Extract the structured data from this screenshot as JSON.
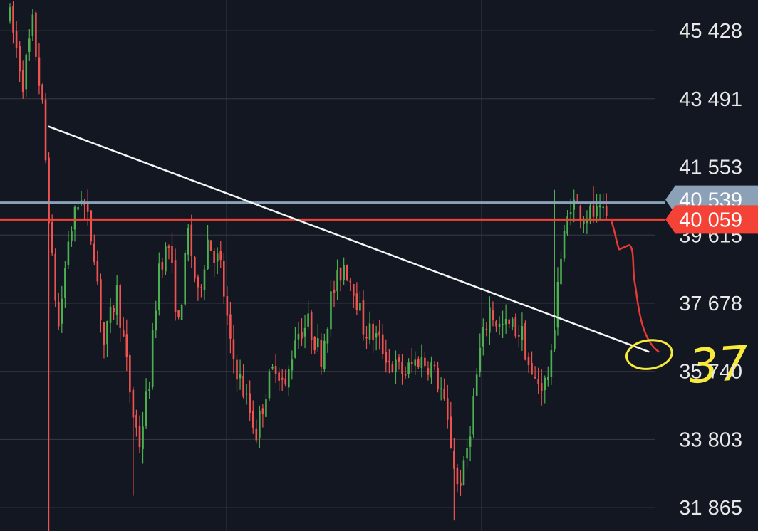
{
  "chart_data": {
    "type": "candlestick",
    "title": "",
    "xlabel": "",
    "ylabel": "",
    "y_axis_side": "right",
    "ylim": [
      31200,
      46300
    ],
    "y_ticks": [
      "45 428",
      "43 491",
      "41 553",
      "39 615",
      "37 678",
      "35 740",
      "33 803",
      "31 865"
    ],
    "y_tick_values": [
      45428,
      43491,
      41553,
      39615,
      37678,
      35740,
      33803,
      31865
    ],
    "grid": true,
    "colors": {
      "background": "#131722",
      "grid": "#363a45",
      "up": "#4caf50",
      "down": "#ef5350",
      "price_line": "#f44336",
      "level_line": "#8aa1b8",
      "trendline": "#f5f5f5",
      "annotation_red": "#e53935",
      "annotation_yellow": "#f7ea3a"
    },
    "current_price": {
      "label": "40 059",
      "value": 40059
    },
    "level_line": {
      "label": "40 539",
      "value": 40539
    },
    "trendline": {
      "from": {
        "bar": 12,
        "price": 42700
      },
      "to": {
        "bar": 197,
        "price": 36300
      }
    },
    "annotations": [
      {
        "type": "freehand-path",
        "color": "red",
        "from_price": 40059,
        "to_price": 36300
      },
      {
        "type": "circle",
        "color": "yellow",
        "price": 36300
      },
      {
        "type": "handwritten-text",
        "text": "37",
        "color": "yellow"
      }
    ],
    "ohlc_shape": {
      "bars": 185,
      "waypoints": [
        [
          0,
          45800
        ],
        [
          4,
          44000
        ],
        [
          7,
          45600
        ],
        [
          10,
          43200
        ],
        [
          13,
          38800
        ],
        [
          15,
          37000
        ],
        [
          18,
          39500
        ],
        [
          22,
          40800
        ],
        [
          26,
          39200
        ],
        [
          29,
          36500
        ],
        [
          33,
          38000
        ],
        [
          38,
          34500
        ],
        [
          40,
          33700
        ],
        [
          43,
          35500
        ],
        [
          46,
          38800
        ],
        [
          49,
          39300
        ],
        [
          52,
          37000
        ],
        [
          55,
          39700
        ],
        [
          58,
          37800
        ],
        [
          61,
          39500
        ],
        [
          65,
          38700
        ],
        [
          68,
          36400
        ],
        [
          73,
          34900
        ],
        [
          76,
          34000
        ],
        [
          79,
          35200
        ],
        [
          82,
          36000
        ],
        [
          85,
          35200
        ],
        [
          88,
          36800
        ],
        [
          92,
          37100
        ],
        [
          96,
          36200
        ],
        [
          99,
          37800
        ],
        [
          103,
          38800
        ],
        [
          106,
          38200
        ],
        [
          109,
          37000
        ],
        [
          113,
          36700
        ],
        [
          118,
          35900
        ],
        [
          122,
          35700
        ],
        [
          126,
          36100
        ],
        [
          130,
          35900
        ],
        [
          133,
          35200
        ],
        [
          136,
          33700
        ],
        [
          138,
          32500
        ],
        [
          140,
          32900
        ],
        [
          142,
          34200
        ],
        [
          145,
          36300
        ],
        [
          148,
          37500
        ],
        [
          151,
          37000
        ],
        [
          155,
          37000
        ],
        [
          158,
          36800
        ],
        [
          161,
          35500
        ],
        [
          165,
          35400
        ],
        [
          167,
          36000
        ],
        [
          169,
          38400
        ],
        [
          171,
          39500
        ],
        [
          173,
          40600
        ],
        [
          177,
          40200
        ],
        [
          180,
          40200
        ],
        [
          184,
          40059
        ]
      ]
    }
  }
}
